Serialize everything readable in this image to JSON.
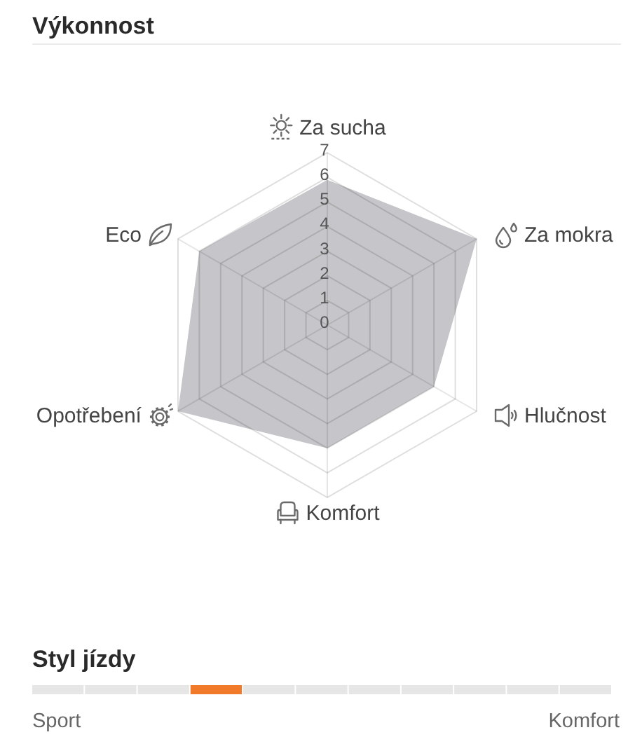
{
  "chart_data": [
    {
      "type": "radar",
      "title": "Výkonnost",
      "categories": [
        "Za sucha",
        "Za mokra",
        "Hlučnost",
        "Komfort",
        "Opotřebení",
        "Eco"
      ],
      "values": [
        5.9,
        7,
        5,
        5,
        7,
        6
      ],
      "color": "#c6c6ca",
      "ylim": [
        0,
        7
      ],
      "yticks": [
        0,
        1,
        2,
        3,
        4,
        5,
        6,
        7
      ],
      "grid": true
    },
    {
      "type": "other",
      "title": "Styl jízdy",
      "categories": [
        null,
        null,
        null,
        null,
        null,
        null,
        null,
        null,
        null,
        null,
        null
      ],
      "colors": [
        "#e6e6e6",
        "#e6e6e6",
        "#e6e6e6",
        "#f07a2a",
        "#e6e6e6",
        "#e6e6e6",
        "#e6e6e6",
        "#e6e6e6",
        "#e6e6e6",
        "#e6e6e6",
        "#e6e6e6"
      ],
      "annotations": [
        "Sport",
        "Komfort"
      ]
    }
  ]
}
